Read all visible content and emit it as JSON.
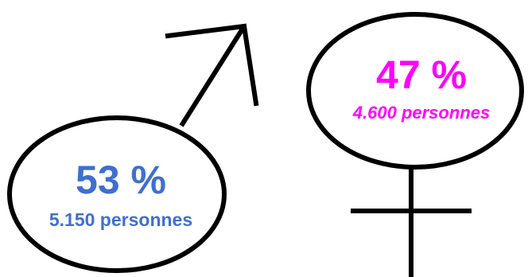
{
  "colors": {
    "outline": "#000000",
    "male": "#3f6fcf",
    "female": "#ff00ff"
  },
  "icons": {
    "male": "mars-symbol-icon",
    "female": "venus-symbol-icon"
  },
  "male": {
    "percent": "53 %",
    "count": "5.150 personnes"
  },
  "female": {
    "percent": "47 %",
    "count": "4.600 personnes"
  }
}
